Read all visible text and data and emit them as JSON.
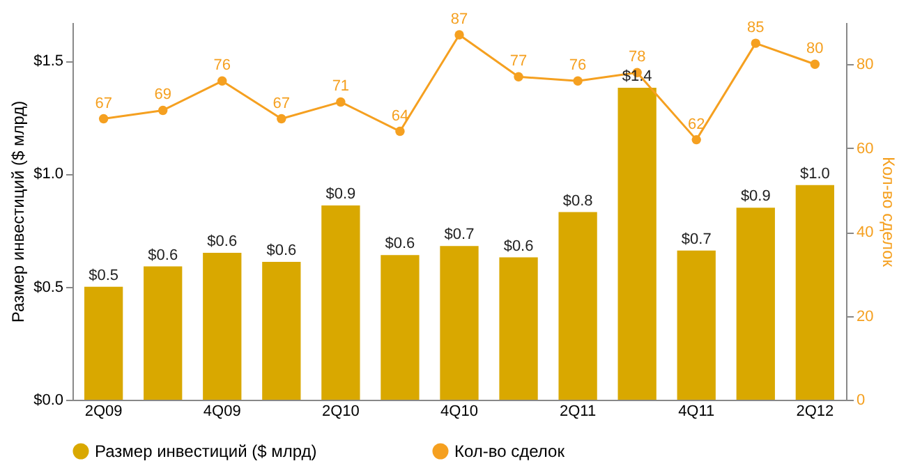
{
  "chart_data": {
    "type": "bar",
    "categories": [
      "2Q09",
      null,
      "4Q09",
      null,
      "2Q10",
      null,
      "4Q10",
      null,
      "2Q11",
      null,
      "4Q11",
      null,
      "2Q12"
    ],
    "ylabel": "Размер инвестиций ($ млрд)",
    "y2label": "Кол-во сделок",
    "ylim": [
      0,
      1.67
    ],
    "yticks": [
      {
        "value": 0,
        "label": "$0.0"
      },
      {
        "value": 0.5,
        "label": "$0.5"
      },
      {
        "value": 1,
        "label": "$1.0"
      },
      {
        "value": 1.5,
        "label": "$1.5"
      }
    ],
    "y2lim": [
      0,
      90
    ],
    "y2ticks": [
      0,
      20,
      40,
      60,
      80
    ],
    "legend": "bottom",
    "series": [
      {
        "name": "Размер инвестиций ($ млрд)",
        "color": "#d9a800",
        "values": [
          0.5,
          0.59,
          0.65,
          0.61,
          0.86,
          0.64,
          0.68,
          0.63,
          0.83,
          1.38,
          0.66,
          0.85,
          0.95
        ],
        "value_labels": [
          "$0.5",
          "$0.6",
          "$0.6",
          "$0.6",
          "$0.9",
          "$0.6",
          "$0.7",
          "$0.6",
          "$0.8",
          "$1.4",
          "$0.7",
          "$0.9",
          "$1.0"
        ]
      },
      {
        "type": "line",
        "axis": "y2",
        "name": "Кол-во сделок",
        "color": "#f5a020",
        "marker": "circle",
        "data_labels": true,
        "values": [
          67,
          69,
          76,
          67,
          71,
          64,
          87,
          77,
          76,
          78,
          62,
          85,
          80
        ]
      }
    ]
  }
}
